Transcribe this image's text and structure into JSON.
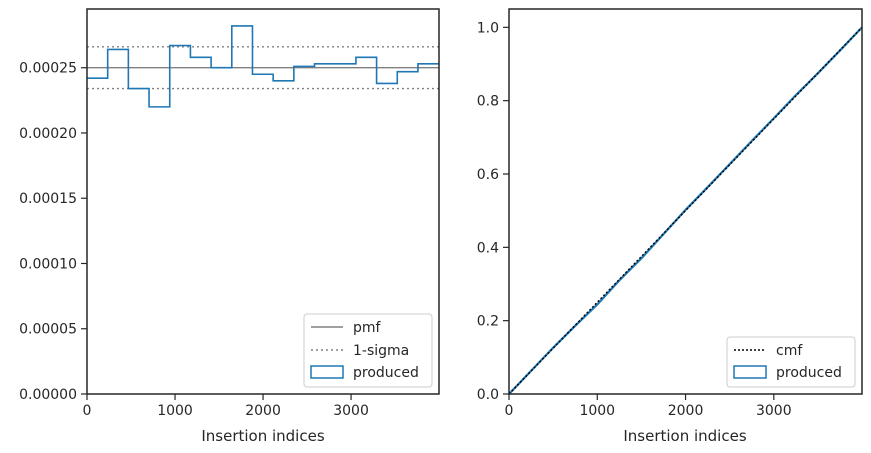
{
  "chart_data": [
    {
      "type": "line",
      "xlabel": "Insertion indices",
      "ylabel": "",
      "xlim": [
        0,
        3999
      ],
      "ylim": [
        0,
        0.000295
      ],
      "x_ticks": [
        0,
        1000,
        2000,
        3000
      ],
      "x_tick_labels": [
        "0",
        "1000",
        "2000",
        "3000"
      ],
      "y_ticks": [
        0,
        5e-05,
        0.0001,
        0.00015,
        0.0002,
        0.00025
      ],
      "y_tick_labels": [
        "0.00000",
        "0.00005",
        "0.00010",
        "0.00015",
        "0.00020",
        "0.00025"
      ],
      "legend_position": "lower right",
      "legend": [
        "pmf",
        "1-sigma",
        "produced"
      ],
      "series": [
        {
          "name": "pmf",
          "style": "solid",
          "color": "#808080",
          "y": 0.00025
        },
        {
          "name": "1-sigma",
          "style": "dotted",
          "color": "#808080",
          "y_values": [
            0.000266,
            0.000234
          ]
        },
        {
          "name": "produced",
          "style": "step",
          "color": "#1f77b4",
          "bin_edges": [
            0,
            235,
            470,
            705,
            940,
            1175,
            1410,
            1645,
            1880,
            2115,
            2350,
            2585,
            2820,
            3055,
            3290,
            3525,
            3760,
            3999
          ],
          "values": [
            0.000242,
            0.000264,
            0.000234,
            0.00022,
            0.000267,
            0.000258,
            0.00025,
            0.000282,
            0.000245,
            0.00024,
            0.000251,
            0.000253,
            0.000253,
            0.000258,
            0.000238,
            0.000247,
            0.000253
          ]
        }
      ]
    },
    {
      "type": "line",
      "xlabel": "Insertion indices",
      "ylabel": "",
      "xlim": [
        0,
        3999
      ],
      "ylim": [
        0,
        1.05
      ],
      "x_ticks": [
        0,
        1000,
        2000,
        3000
      ],
      "x_tick_labels": [
        "0",
        "1000",
        "2000",
        "3000"
      ],
      "y_ticks": [
        0,
        0.2,
        0.4,
        0.6,
        0.8,
        1.0
      ],
      "y_tick_labels": [
        "0.0",
        "0.2",
        "0.4",
        "0.6",
        "0.8",
        "1.0"
      ],
      "legend_position": "lower right",
      "legend": [
        "cmf",
        "produced"
      ],
      "series": [
        {
          "name": "cmf",
          "style": "dotted",
          "color": "#000000",
          "x": [
            0,
            3999
          ],
          "values": [
            0,
            1.0
          ]
        },
        {
          "name": "produced",
          "style": "solid",
          "color": "#1f77b4",
          "x": [
            0,
            250,
            500,
            750,
            1000,
            1250,
            1500,
            1750,
            2000,
            2250,
            2500,
            2750,
            3000,
            3250,
            3500,
            3750,
            3999
          ],
          "values": [
            0,
            0.063,
            0.126,
            0.186,
            0.244,
            0.31,
            0.37,
            0.436,
            0.502,
            0.564,
            0.627,
            0.69,
            0.752,
            0.815,
            0.875,
            0.937,
            1.0
          ]
        }
      ]
    }
  ]
}
